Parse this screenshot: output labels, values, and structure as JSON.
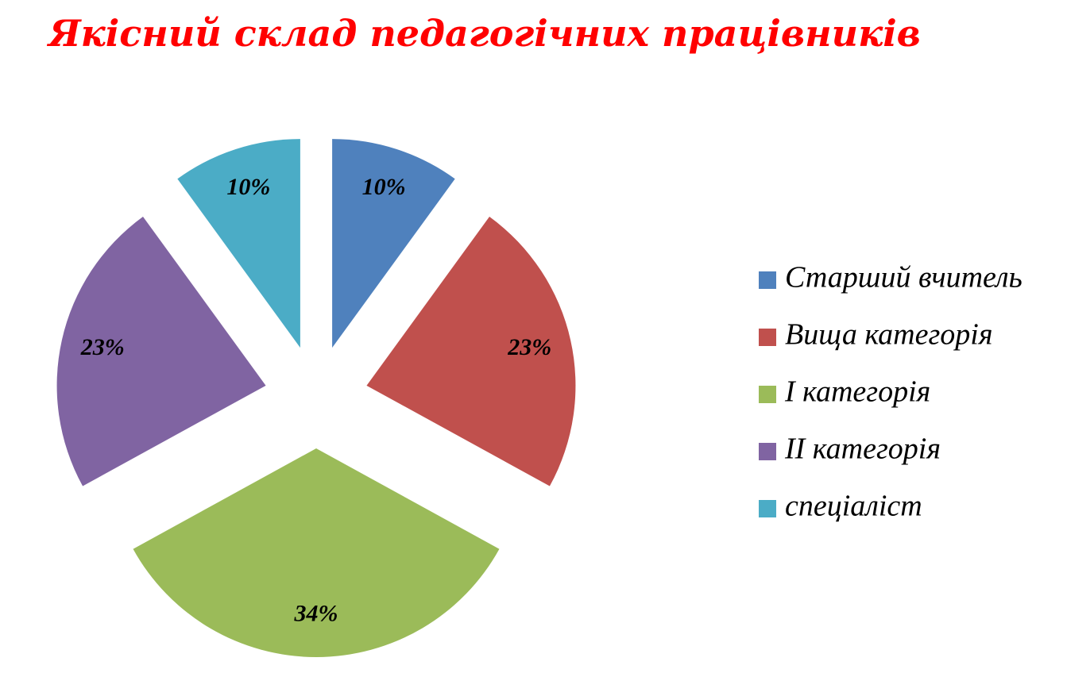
{
  "chart_data": {
    "type": "pie",
    "title": "Якісний склад педагогічних працівників",
    "categories": [
      "Старший вчитель",
      "Вища категорія",
      "І категорія",
      "ІІ категорія",
      "спеціаліст"
    ],
    "values": [
      10,
      23,
      34,
      23,
      10
    ],
    "value_labels": [
      "10%",
      "23%",
      "34%",
      "23%",
      "10%"
    ],
    "colors": [
      "#4f81bd",
      "#c0504d",
      "#9bbb59",
      "#8064a2",
      "#4bacc6"
    ],
    "exploded": true,
    "legend": "right"
  }
}
